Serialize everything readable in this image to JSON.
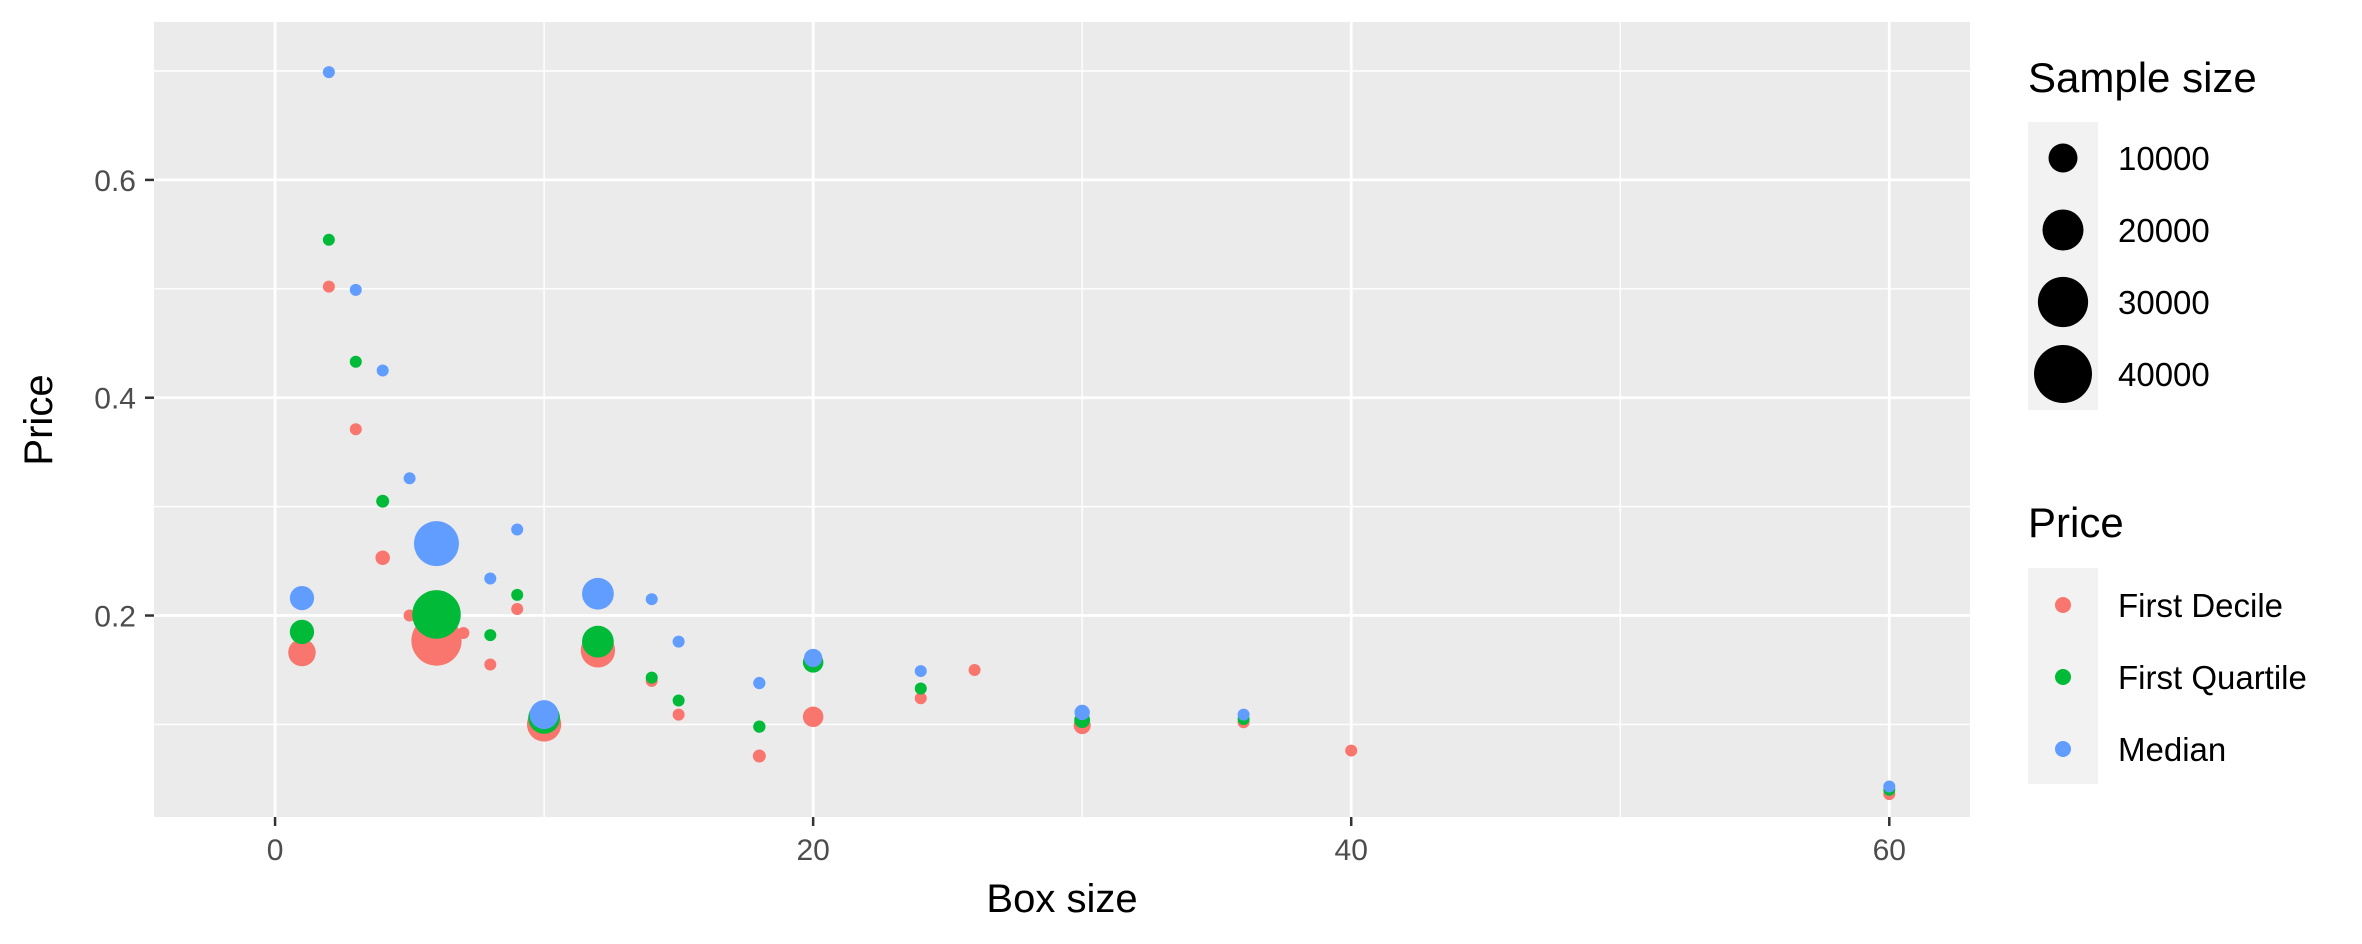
{
  "chart_data": {
    "type": "scatter",
    "title": "",
    "xlabel": "Box size",
    "ylabel": "Price",
    "xlim": [
      -4.5,
      63
    ],
    "ylim": [
      0.015,
      0.745
    ],
    "x_ticks": [
      0,
      20,
      40,
      60
    ],
    "x_tick_labels": [
      "0",
      "20",
      "40",
      "60"
    ],
    "x_minor_ticks": [
      10,
      30,
      50
    ],
    "y_ticks": [
      0.2,
      0.4,
      0.6
    ],
    "y_tick_labels": [
      "0.2",
      "0.4",
      "0.6"
    ],
    "y_minor_ticks": [
      0.1,
      0.3,
      0.5,
      0.7
    ],
    "grid": true,
    "panel_background": "#ebebeb",
    "grid_color": "#ffffff",
    "size_legend": {
      "title": "Sample size",
      "breaks": [
        10000,
        20000,
        30000,
        40000
      ],
      "labels": [
        "10000",
        "20000",
        "30000",
        "40000"
      ]
    },
    "color_legend": {
      "title": "Price",
      "placement": "right"
    },
    "series": [
      {
        "name": "First Decile",
        "color": "#F8766D",
        "points": [
          {
            "x": 1,
            "y": 0.166,
            "size": 9000
          },
          {
            "x": 2,
            "y": 0.502,
            "size": 700
          },
          {
            "x": 3,
            "y": 0.371,
            "size": 800
          },
          {
            "x": 4,
            "y": 0.253,
            "size": 2500
          },
          {
            "x": 5,
            "y": 0.2,
            "size": 600
          },
          {
            "x": 6,
            "y": 0.177,
            "size": 30000
          },
          {
            "x": 7,
            "y": 0.184,
            "size": 500
          },
          {
            "x": 8,
            "y": 0.155,
            "size": 700
          },
          {
            "x": 9,
            "y": 0.206,
            "size": 1200
          },
          {
            "x": 10,
            "y": 0.1,
            "size": 14000
          },
          {
            "x": 12,
            "y": 0.168,
            "size": 14000
          },
          {
            "x": 14,
            "y": 0.14,
            "size": 500
          },
          {
            "x": 15,
            "y": 0.109,
            "size": 1500
          },
          {
            "x": 18,
            "y": 0.071,
            "size": 2000
          },
          {
            "x": 20,
            "y": 0.107,
            "size": 5000
          },
          {
            "x": 24,
            "y": 0.124,
            "size": 1500
          },
          {
            "x": 26,
            "y": 0.15,
            "size": 400
          },
          {
            "x": 30,
            "y": 0.099,
            "size": 3500
          },
          {
            "x": 36,
            "y": 0.102,
            "size": 500
          },
          {
            "x": 40,
            "y": 0.076,
            "size": 500
          },
          {
            "x": 60,
            "y": 0.036,
            "size": 500
          }
        ]
      },
      {
        "name": "First Quartile",
        "color": "#00BA38",
        "points": [
          {
            "x": 1,
            "y": 0.185,
            "size": 7000
          },
          {
            "x": 2,
            "y": 0.545,
            "size": 500
          },
          {
            "x": 3,
            "y": 0.433,
            "size": 700
          },
          {
            "x": 4,
            "y": 0.305,
            "size": 2000
          },
          {
            "x": 6,
            "y": 0.201,
            "size": 28000
          },
          {
            "x": 8,
            "y": 0.182,
            "size": 600
          },
          {
            "x": 9,
            "y": 0.219,
            "size": 700
          },
          {
            "x": 10,
            "y": 0.106,
            "size": 12000
          },
          {
            "x": 12,
            "y": 0.176,
            "size": 12000
          },
          {
            "x": 14,
            "y": 0.143,
            "size": 400
          },
          {
            "x": 15,
            "y": 0.122,
            "size": 1200
          },
          {
            "x": 18,
            "y": 0.098,
            "size": 1800
          },
          {
            "x": 20,
            "y": 0.157,
            "size": 5000
          },
          {
            "x": 24,
            "y": 0.133,
            "size": 1000
          },
          {
            "x": 30,
            "y": 0.104,
            "size": 3000
          },
          {
            "x": 36,
            "y": 0.105,
            "size": 300
          },
          {
            "x": 60,
            "y": 0.04,
            "size": 300
          }
        ]
      },
      {
        "name": "Median",
        "color": "#619CFF",
        "points": [
          {
            "x": 1,
            "y": 0.216,
            "size": 7000
          },
          {
            "x": 2,
            "y": 0.699,
            "size": 500
          },
          {
            "x": 3,
            "y": 0.499,
            "size": 700
          },
          {
            "x": 4,
            "y": 0.425,
            "size": 1700
          },
          {
            "x": 5,
            "y": 0.326,
            "size": 400
          },
          {
            "x": 6,
            "y": 0.266,
            "size": 24000
          },
          {
            "x": 8,
            "y": 0.234,
            "size": 500
          },
          {
            "x": 9,
            "y": 0.279,
            "size": 900
          },
          {
            "x": 10,
            "y": 0.109,
            "size": 10000
          },
          {
            "x": 12,
            "y": 0.22,
            "size": 12000
          },
          {
            "x": 14,
            "y": 0.215,
            "size": 400
          },
          {
            "x": 15,
            "y": 0.176,
            "size": 1500
          },
          {
            "x": 18,
            "y": 0.138,
            "size": 1800
          },
          {
            "x": 20,
            "y": 0.161,
            "size": 4000
          },
          {
            "x": 24,
            "y": 0.149,
            "size": 1500
          },
          {
            "x": 30,
            "y": 0.111,
            "size": 2800
          },
          {
            "x": 36,
            "y": 0.109,
            "size": 300
          },
          {
            "x": 60,
            "y": 0.043,
            "size": 300
          }
        ]
      }
    ]
  }
}
